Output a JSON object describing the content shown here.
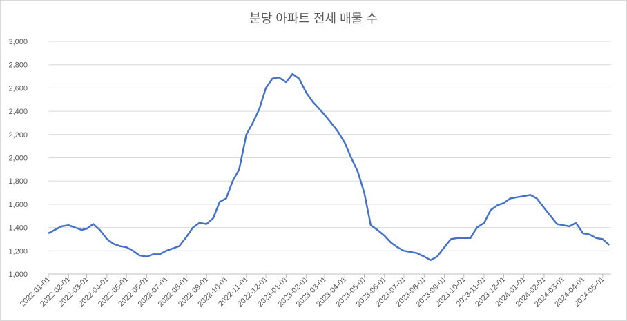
{
  "chart_data": {
    "type": "line",
    "title": "분당 아파트 전세 매물 수",
    "x": [
      "2022-01-01",
      "2022-01-11",
      "2022-01-21",
      "2022-02-01",
      "2022-02-11",
      "2022-02-21",
      "2022-03-01",
      "2022-03-11",
      "2022-03-21",
      "2022-04-01",
      "2022-04-11",
      "2022-04-21",
      "2022-05-01",
      "2022-05-11",
      "2022-05-21",
      "2022-06-01",
      "2022-06-11",
      "2022-06-21",
      "2022-07-01",
      "2022-07-11",
      "2022-07-21",
      "2022-08-01",
      "2022-08-11",
      "2022-08-21",
      "2022-09-01",
      "2022-09-11",
      "2022-09-21",
      "2022-10-01",
      "2022-10-11",
      "2022-10-21",
      "2022-11-01",
      "2022-11-11",
      "2022-11-21",
      "2022-12-01",
      "2022-12-11",
      "2022-12-21",
      "2023-01-01",
      "2023-01-11",
      "2023-01-21",
      "2023-02-01",
      "2023-02-11",
      "2023-02-21",
      "2023-03-01",
      "2023-03-11",
      "2023-03-21",
      "2023-04-01",
      "2023-04-11",
      "2023-04-21",
      "2023-05-01",
      "2023-05-11",
      "2023-05-21",
      "2023-06-01",
      "2023-06-11",
      "2023-06-21",
      "2023-07-01",
      "2023-07-11",
      "2023-07-21",
      "2023-08-01",
      "2023-08-11",
      "2023-08-21",
      "2023-09-01",
      "2023-09-11",
      "2023-09-21",
      "2023-10-01",
      "2023-10-11",
      "2023-10-21",
      "2023-11-01",
      "2023-11-11",
      "2023-11-21",
      "2023-12-01",
      "2023-12-11",
      "2023-12-21",
      "2024-01-01",
      "2024-01-11",
      "2024-01-21",
      "2024-02-01",
      "2024-02-11",
      "2024-02-21",
      "2024-03-01",
      "2024-03-11",
      "2024-03-21",
      "2024-04-01",
      "2024-04-11",
      "2024-04-21",
      "2024-05-01",
      "2024-05-11"
    ],
    "series": [
      {
        "name": "분당 아파트 전세 매물 수",
        "color": "#4472c4",
        "values": [
          1350,
          1380,
          1410,
          1420,
          1400,
          1380,
          1390,
          1430,
          1380,
          1300,
          1260,
          1240,
          1230,
          1200,
          1160,
          1150,
          1170,
          1170,
          1200,
          1220,
          1240,
          1320,
          1400,
          1440,
          1430,
          1480,
          1620,
          1650,
          1800,
          1900,
          2200,
          2300,
          2420,
          2600,
          2680,
          2690,
          2650,
          2720,
          2680,
          2560,
          2480,
          2420,
          2370,
          2300,
          2230,
          2130,
          2000,
          1880,
          1700,
          1420,
          1380,
          1330,
          1270,
          1230,
          1200,
          1190,
          1180,
          1150,
          1120,
          1150,
          1230,
          1300,
          1310,
          1310,
          1310,
          1400,
          1440,
          1550,
          1590,
          1610,
          1650,
          1660,
          1670,
          1680,
          1650,
          1570,
          1500,
          1430,
          1420,
          1410,
          1440,
          1350,
          1340,
          1310,
          1300,
          1250
        ]
      }
    ],
    "xlim": [
      "2022-01-01",
      "2024-05-14"
    ],
    "xticks": [
      "2022-01-01",
      "2022-02-01",
      "2022-03-01",
      "2022-04-01",
      "2022-05-01",
      "2022-06-01",
      "2022-07-01",
      "2022-08-01",
      "2022-09-01",
      "2022-10-01",
      "2022-11-01",
      "2022-12-01",
      "2023-01-01",
      "2023-02-01",
      "2023-03-01",
      "2023-04-01",
      "2023-05-01",
      "2023-06-01",
      "2023-07-01",
      "2023-08-01",
      "2023-09-01",
      "2023-10-01",
      "2023-11-01",
      "2023-12-01",
      "2024-01-01",
      "2024-02-01",
      "2024-03-01",
      "2024-04-01",
      "2024-05-01"
    ],
    "ylim": [
      1000,
      3000
    ],
    "yticks": [
      {
        "value": 1000,
        "label": "1,000"
      },
      {
        "value": 1200,
        "label": "1,200"
      },
      {
        "value": 1400,
        "label": "1,400"
      },
      {
        "value": 1600,
        "label": "1,600"
      },
      {
        "value": 1800,
        "label": "1,800"
      },
      {
        "value": 2000,
        "label": "2,000"
      },
      {
        "value": 2200,
        "label": "2,200"
      },
      {
        "value": 2400,
        "label": "2,400"
      },
      {
        "value": 2600,
        "label": "2,600"
      },
      {
        "value": 2800,
        "label": "2,800"
      },
      {
        "value": 3000,
        "label": "3,000"
      }
    ],
    "grid": true
  }
}
